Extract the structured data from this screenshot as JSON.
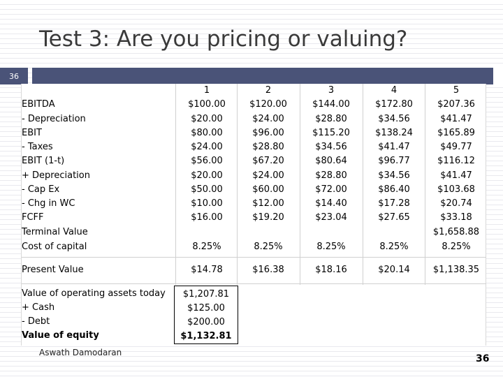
{
  "slide": {
    "title": "Test 3: Are you pricing or valuing?",
    "tab_number": "36",
    "author": "Aswath Damodaran",
    "page_number": "36",
    "accent_color": "#4a5378"
  },
  "table": {
    "years": [
      "1",
      "2",
      "3",
      "4",
      "5"
    ],
    "rows": [
      {
        "label": "EBITDA",
        "values": [
          "$100.00",
          "$120.00",
          "$144.00",
          "$172.80",
          "$207.36"
        ]
      },
      {
        "label": " - Depreciation",
        "values": [
          "$20.00",
          "$24.00",
          "$28.80",
          "$34.56",
          "$41.47"
        ]
      },
      {
        "label": "EBIT",
        "values": [
          "$80.00",
          "$96.00",
          "$115.20",
          "$138.24",
          "$165.89"
        ]
      },
      {
        "label": " - Taxes",
        "values": [
          "$24.00",
          "$28.80",
          "$34.56",
          "$41.47",
          "$49.77"
        ]
      },
      {
        "label": "EBIT (1-t)",
        "values": [
          "$56.00",
          "$67.20",
          "$80.64",
          "$96.77",
          "$116.12"
        ]
      },
      {
        "label": " + Depreciation",
        "values": [
          "$20.00",
          "$24.00",
          "$28.80",
          "$34.56",
          "$41.47"
        ]
      },
      {
        "label": " - Cap Ex",
        "values": [
          "$50.00",
          "$60.00",
          "$72.00",
          "$86.40",
          "$103.68"
        ]
      },
      {
        "label": " - Chg in WC",
        "values": [
          "$10.00",
          "$12.00",
          "$14.40",
          "$17.28",
          "$20.74"
        ]
      },
      {
        "label": "FCFF",
        "values": [
          "$16.00",
          "$19.20",
          "$23.04",
          "$27.65",
          "$33.18"
        ]
      },
      {
        "label": "Terminal Value",
        "values": [
          "",
          "",
          "",
          "",
          "$1,658.88"
        ]
      },
      {
        "label": "Cost of capital",
        "values": [
          "8.25%",
          "8.25%",
          "8.25%",
          "8.25%",
          "8.25%"
        ]
      }
    ],
    "present_value": {
      "label": "Present Value",
      "values": [
        "$14.78",
        "$16.38",
        "$18.16",
        "$20.14",
        "$1,138.35"
      ]
    },
    "valuation": [
      {
        "label": "Value of operating assets today",
        "value": "$1,207.81"
      },
      {
        "label": " + Cash",
        "value": "$125.00"
      },
      {
        "label": " - Debt",
        "value": "$200.00"
      },
      {
        "label": "Value of equity",
        "value": "$1,132.81"
      }
    ]
  }
}
